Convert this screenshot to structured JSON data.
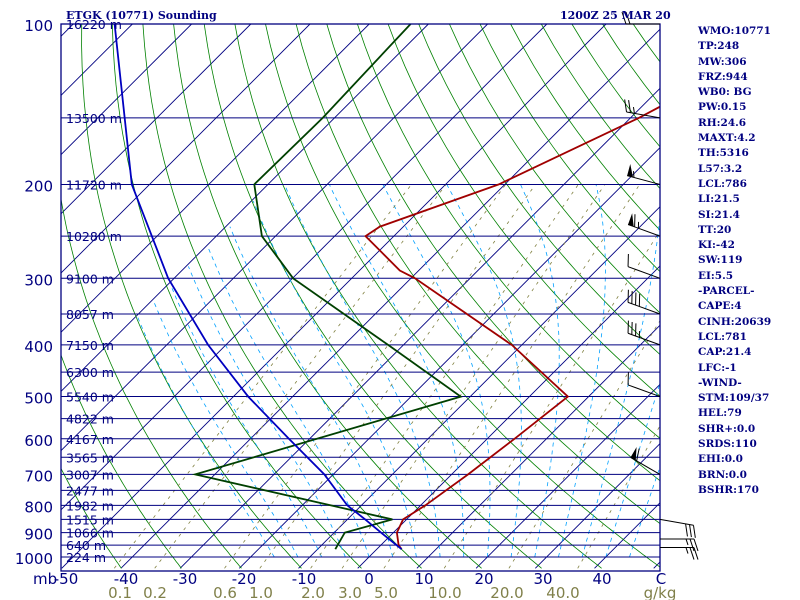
{
  "header": {
    "station": "ETGK (10771) Sounding",
    "time": "1200Z 25 MAR 20"
  },
  "stats": [
    "WMO:10771",
    "TP:248",
    "MW:306",
    "FRZ:944",
    "WB0: BG",
    "PW:0.15",
    "RH:24.6",
    "MAXT:4.2",
    "TH:5316",
    "L57:3.2",
    "LCL:786",
    "LI:21.5",
    "SI:21.4",
    "TT:20",
    "KI:-42",
    "SW:119",
    "EI:5.5",
    "-PARCEL-",
    "CAPE:4",
    "CINH:20639",
    "LCL:781",
    "CAP:21.4",
    "LFC:-1",
    "-WIND-",
    "STM:109/37",
    "HEL:79",
    "SHR+:0.0",
    "SRDS:110",
    "EHI:0.0",
    "BRN:0.0",
    "BSHR:170"
  ],
  "chart_data": {
    "type": "line",
    "title": "ETGK (10771) Sounding",
    "diagram": "skew-T log-P",
    "colors": {
      "isobar": "#000080",
      "isotherm": "#000080",
      "dry_adiabat": "#008000",
      "moist_adiabat": "#00a0ff",
      "mixing_ratio": "#808040",
      "temperature": "#a00000",
      "dewpoint": "#004000",
      "parcel": "#0000c0",
      "text": "#000080"
    },
    "pressure_levels": [
      100,
      200,
      300,
      400,
      500,
      600,
      700,
      800,
      900,
      1000
    ],
    "ylim": [
      1050,
      100
    ],
    "y_scale": "log",
    "y_unit": "mb",
    "height_labels": [
      {
        "p": 100,
        "label": "16220 m"
      },
      {
        "p": 150,
        "label": "13500 m"
      },
      {
        "p": 200,
        "label": "11720 m"
      },
      {
        "p": 250,
        "label": "10280 m"
      },
      {
        "p": 300,
        "label": "9100 m"
      },
      {
        "p": 350,
        "label": "8057 m"
      },
      {
        "p": 400,
        "label": "7150 m"
      },
      {
        "p": 450,
        "label": "6300 m"
      },
      {
        "p": 500,
        "label": "5540 m"
      },
      {
        "p": 550,
        "label": "4822 m"
      },
      {
        "p": 600,
        "label": "4167 m"
      },
      {
        "p": 650,
        "label": "3565 m"
      },
      {
        "p": 700,
        "label": "3007 m"
      },
      {
        "p": 750,
        "label": "2477 m"
      },
      {
        "p": 800,
        "label": "1982 m"
      },
      {
        "p": 850,
        "label": "1515 m"
      },
      {
        "p": 900,
        "label": "1066 m"
      },
      {
        "p": 950,
        "label": "640 m"
      },
      {
        "p": 1000,
        "label": "224 m"
      }
    ],
    "x_ticks": [
      "-50",
      "-40",
      "-30",
      "-20",
      "-10",
      "0",
      "10",
      "20",
      "30",
      "40",
      "C"
    ],
    "x_tick_values": [
      -50,
      -40,
      -30,
      -20,
      -10,
      0,
      10,
      20,
      30,
      40
    ],
    "xlim_surface_c": [
      -50,
      50
    ],
    "mixing_ratio_labels": [
      "0.1",
      "0.2",
      "0.6",
      "1.0",
      "2.0",
      "3.0",
      "5.0",
      "10.0",
      "20.0",
      "40.0",
      "g/kg"
    ],
    "mixing_ratio_values": [
      0.1,
      0.2,
      0.6,
      1.0,
      2.0,
      3.0,
      5.0,
      10.0,
      20.0,
      40.0
    ],
    "series": [
      {
        "key": "temperature",
        "points": [
          {
            "p": 967,
            "t": 4.2
          },
          {
            "p": 950,
            "t": 3.0
          },
          {
            "p": 900,
            "t": 0.6
          },
          {
            "p": 850,
            "t": -0.6
          },
          {
            "p": 800,
            "t": 0.8
          },
          {
            "p": 700,
            "t": 2.8
          },
          {
            "p": 600,
            "t": 4.6
          },
          {
            "p": 500,
            "t": 6.5
          },
          {
            "p": 400,
            "t": -11.7
          },
          {
            "p": 300,
            "t": -39.3
          },
          {
            "p": 290,
            "t": -43.2
          },
          {
            "p": 250,
            "t": -54.8
          },
          {
            "p": 240,
            "t": -54.0
          },
          {
            "p": 200,
            "t": -41.0
          },
          {
            "p": 150,
            "t": -28.6
          },
          {
            "p": 100,
            "t": -14.5
          }
        ]
      },
      {
        "key": "dewpoint",
        "points": [
          {
            "p": 967,
            "t": -7.0
          },
          {
            "p": 900,
            "t": -8.2
          },
          {
            "p": 850,
            "t": -2.4
          },
          {
            "p": 700,
            "t": -43.3
          },
          {
            "p": 500,
            "t": -11.6
          },
          {
            "p": 400,
            "t": -32.6
          },
          {
            "p": 300,
            "t": -59.9
          },
          {
            "p": 250,
            "t": -72.3
          },
          {
            "p": 200,
            "t": -82.3
          },
          {
            "p": 150,
            "t": -82.0
          },
          {
            "p": 100,
            "t": -83.0
          }
        ]
      },
      {
        "key": "parcel",
        "points": [
          {
            "p": 967,
            "t": 4.2
          },
          {
            "p": 900,
            "t": -2.1
          },
          {
            "p": 850,
            "t": -7.0
          },
          {
            "p": 800,
            "t": -12.4
          },
          {
            "p": 700,
            "t": -21.5
          },
          {
            "p": 600,
            "t": -33.5
          },
          {
            "p": 500,
            "t": -47.5
          },
          {
            "p": 400,
            "t": -63.0
          },
          {
            "p": 300,
            "t": -81.0
          },
          {
            "p": 200,
            "t": -103.0
          },
          {
            "p": 100,
            "t": -133.0
          }
        ]
      }
    ],
    "wind_barbs": [
      {
        "p": 100,
        "dir": 270,
        "kt": 20
      },
      {
        "p": 150,
        "dir": 280,
        "kt": 25
      },
      {
        "p": 200,
        "dir": 285,
        "kt": 55
      },
      {
        "p": 250,
        "dir": 290,
        "kt": 65
      },
      {
        "p": 300,
        "dir": 290,
        "kt": 10
      },
      {
        "p": 350,
        "dir": 290,
        "kt": 40
      },
      {
        "p": 400,
        "dir": 290,
        "kt": 35
      },
      {
        "p": 500,
        "dir": 290,
        "kt": 10
      },
      {
        "p": 700,
        "dir": 300,
        "kt": 60
      },
      {
        "p": 850,
        "dir": 100,
        "kt": 30
      },
      {
        "p": 925,
        "dir": 90,
        "kt": 25
      },
      {
        "p": 960,
        "dir": 90,
        "kt": 25
      }
    ],
    "grid": true
  }
}
